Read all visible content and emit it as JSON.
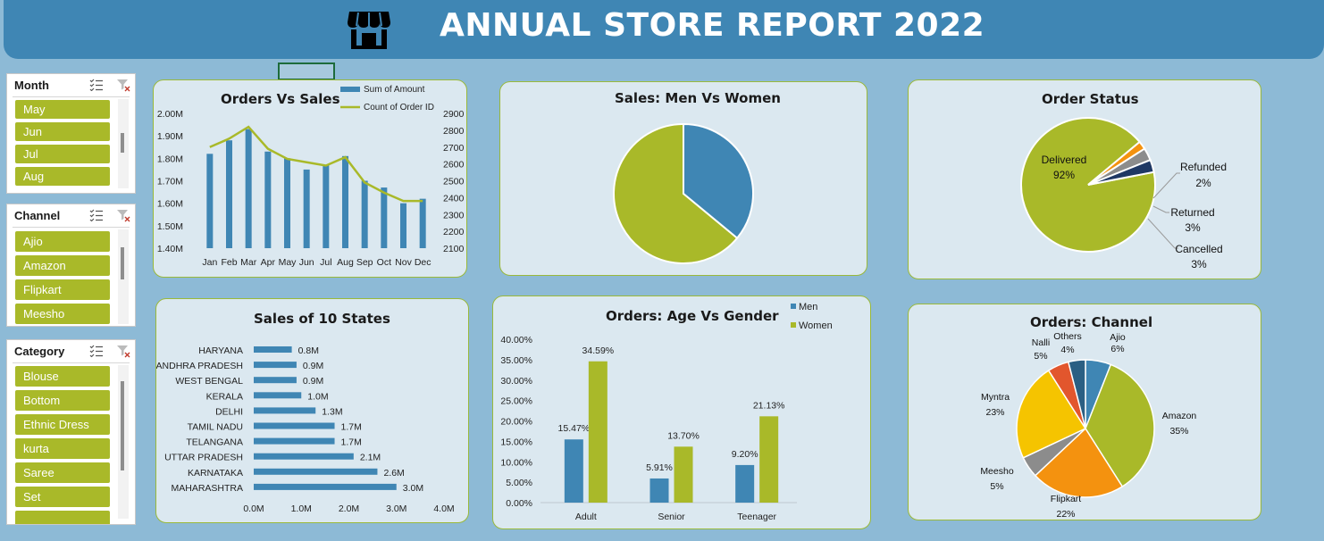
{
  "header": {
    "title": "ANNUAL STORE REPORT 2022",
    "icon": "storefront-icon"
  },
  "slicers": [
    {
      "title": "Month",
      "items": [
        "May",
        "Jun",
        "Jul",
        "Aug"
      ]
    },
    {
      "title": "Channel",
      "items": [
        "Ajio",
        "Amazon",
        "Flipkart",
        "Meesho"
      ]
    },
    {
      "title": "Category",
      "items": [
        "Blouse",
        "Bottom",
        "Ethnic Dress",
        "kurta",
        "Saree",
        "Set"
      ]
    }
  ],
  "colors": {
    "blue": "#3f86b4",
    "green": "#a9b929",
    "navy": "#1f3864",
    "grey": "#8c8c8c",
    "orange": "#f4920f",
    "gold": "#f5c400",
    "red": "#e2562d",
    "darkblue": "#2b5f83"
  },
  "chart_data": [
    {
      "type": "bar+line",
      "title": "Orders Vs Sales",
      "categories": [
        "Jan",
        "Feb",
        "Mar",
        "Apr",
        "May",
        "Jun",
        "Jul",
        "Aug",
        "Sep",
        "Oct",
        "Nov",
        "Dec"
      ],
      "series": [
        {
          "name": "Sum of Amount",
          "type": "bar",
          "axis": "left",
          "values": [
            1.82,
            1.88,
            1.93,
            1.83,
            1.8,
            1.75,
            1.77,
            1.81,
            1.7,
            1.67,
            1.6,
            1.62
          ]
        },
        {
          "name": "Count of Order ID",
          "type": "line",
          "axis": "right",
          "values": [
            2700,
            2750,
            2820,
            2690,
            2630,
            2610,
            2590,
            2640,
            2490,
            2430,
            2380,
            2380
          ]
        }
      ],
      "left_ticks": [
        "2.00M",
        "1.90M",
        "1.80M",
        "1.70M",
        "1.60M",
        "1.50M",
        "1.40M"
      ],
      "right_ticks": [
        "2900",
        "2800",
        "2700",
        "2600",
        "2500",
        "2400",
        "2300",
        "2200",
        "2100"
      ],
      "ylim_left": [
        1.4,
        2.0
      ],
      "ylim_right": [
        2100,
        2900
      ],
      "legend": "top"
    },
    {
      "type": "pie",
      "title": "Sales: Men Vs Women",
      "slices": [
        {
          "label": "Men",
          "value": 36
        },
        {
          "label": "Women",
          "value": 64
        }
      ]
    },
    {
      "type": "pie",
      "title": "Order Status",
      "slices": [
        {
          "label": "Delivered",
          "value": 92,
          "display": "92%"
        },
        {
          "label": "Refunded",
          "value": 2,
          "display": "2%"
        },
        {
          "label": "Returned",
          "value": 3,
          "display": "3%"
        },
        {
          "label": "Cancelled",
          "value": 3,
          "display": "3%"
        }
      ]
    },
    {
      "type": "bar",
      "orientation": "horizontal",
      "title": "Sales of 10 States",
      "categories": [
        "HARYANA",
        "ANDHRA PRADESH",
        "WEST BENGAL",
        "KERALA",
        "DELHI",
        "TAMIL NADU",
        "TELANGANA",
        "UTTAR PRADESH",
        "KARNATAKA",
        "MAHARASHTRA"
      ],
      "values": [
        0.8,
        0.9,
        0.9,
        1.0,
        1.3,
        1.7,
        1.7,
        2.1,
        2.6,
        3.0
      ],
      "labels": [
        "0.8M",
        "0.9M",
        "0.9M",
        "1.0M",
        "1.3M",
        "1.7M",
        "1.7M",
        "2.1M",
        "2.6M",
        "3.0M"
      ],
      "x_ticks": [
        "0.0M",
        "1.0M",
        "2.0M",
        "3.0M",
        "4.0M"
      ],
      "xlim": [
        0,
        4.0
      ]
    },
    {
      "type": "bar",
      "title": "Orders: Age Vs Gender",
      "categories": [
        "Adult",
        "Senior",
        "Teenager"
      ],
      "series": [
        {
          "name": "Men",
          "values": [
            15.47,
            5.91,
            9.2
          ],
          "labels": [
            "15.47%",
            "5.91%",
            "9.20%"
          ]
        },
        {
          "name": "Women",
          "values": [
            34.59,
            13.7,
            21.13
          ],
          "labels": [
            "34.59%",
            "13.70%",
            "21.13%"
          ]
        }
      ],
      "y_ticks": [
        "40.00%",
        "35.00%",
        "30.00%",
        "25.00%",
        "20.00%",
        "15.00%",
        "10.00%",
        "5.00%",
        "0.00%"
      ],
      "ylim": [
        0,
        40
      ],
      "legend": "top-right"
    },
    {
      "type": "pie",
      "title": "Orders: Channel",
      "slices": [
        {
          "label": "Ajio",
          "value": 6,
          "display": "6%"
        },
        {
          "label": "Amazon",
          "value": 35,
          "display": "35%"
        },
        {
          "label": "Flipkart",
          "value": 22,
          "display": "22%"
        },
        {
          "label": "Meesho",
          "value": 5,
          "display": "5%"
        },
        {
          "label": "Myntra",
          "value": 23,
          "display": "23%"
        },
        {
          "label": "Nalli",
          "value": 5,
          "display": "5%"
        },
        {
          "label": "Others",
          "value": 4,
          "display": "4%"
        }
      ]
    }
  ]
}
